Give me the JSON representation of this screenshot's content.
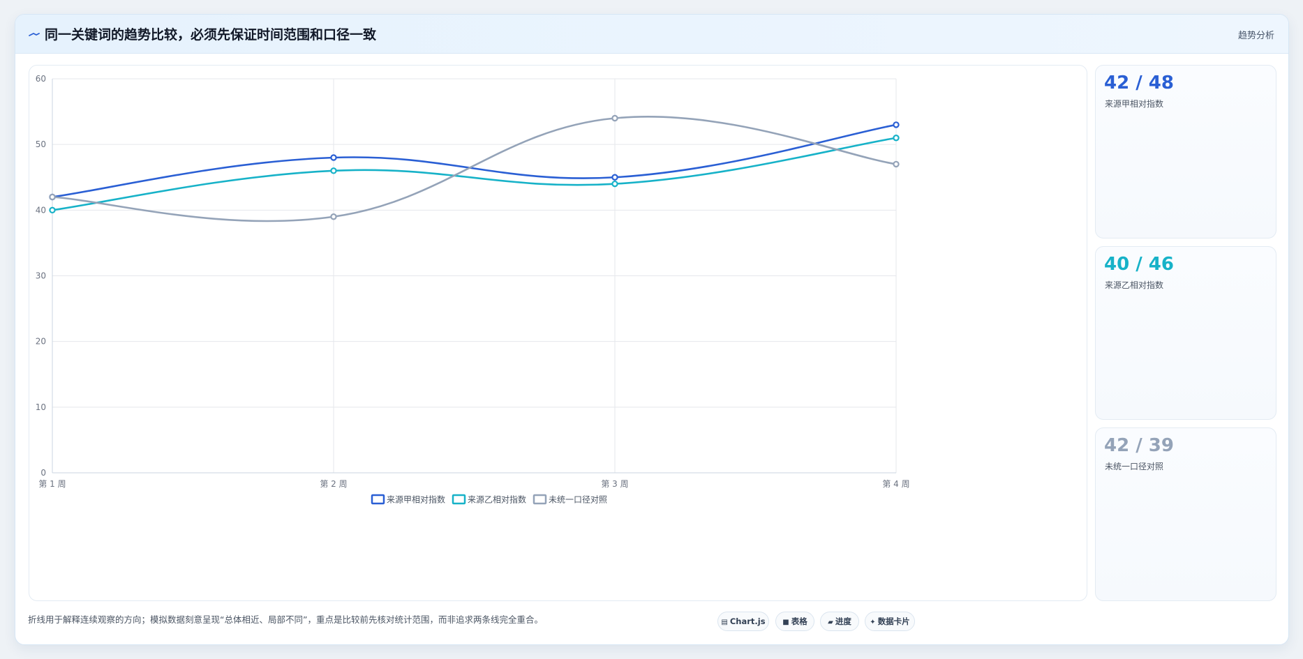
{
  "header": {
    "icon": "trend-line-icon",
    "title": "同一关键词的趋势比较，必须先保证时间范围和口径一致",
    "tag": "趋势分析"
  },
  "colors": {
    "series_a": "#2a5fd4",
    "series_b": "#17b2c8",
    "series_c": "#94a3b8"
  },
  "stats": [
    {
      "value": "42 / 48",
      "label": "来源甲相对指数",
      "color": "#2a5fd4"
    },
    {
      "value": "40 / 46",
      "label": "来源乙相对指数",
      "color": "#17b2c8"
    },
    {
      "value": "42 / 39",
      "label": "未统一口径对照",
      "color": "#94a3b8"
    }
  ],
  "footnote": "折线用于解释连续观察的方向；模拟数据刻意呈现“总体相近、局部不同”，重点是比较前先核对统计范围，而非追求两条线完全重合。",
  "chips": [
    {
      "icon": "chart-icon",
      "label": "Chart.js"
    },
    {
      "icon": "table-icon",
      "label": "表格"
    },
    {
      "icon": "progress-icon",
      "label": "进度"
    },
    {
      "icon": "sparkle-icon",
      "label": "数据卡片"
    }
  ],
  "chart_data": {
    "type": "line",
    "categories": [
      "第 1 周",
      "第 2 周",
      "第 3 周",
      "第 4 周"
    ],
    "series": [
      {
        "name": "来源甲相对指数",
        "values": [
          42,
          48,
          45,
          53
        ],
        "color": "#2a5fd4"
      },
      {
        "name": "来源乙相对指数",
        "values": [
          40,
          46,
          44,
          51
        ],
        "color": "#17b2c8"
      },
      {
        "name": "未统一口径对照",
        "values": [
          42,
          39,
          54,
          47
        ],
        "color": "#94a3b8"
      }
    ],
    "ylim": [
      0,
      60
    ],
    "yticks": [
      0,
      10,
      20,
      30,
      40,
      50,
      60
    ],
    "grid": true,
    "legend": "bottom-center",
    "smooth": true
  }
}
